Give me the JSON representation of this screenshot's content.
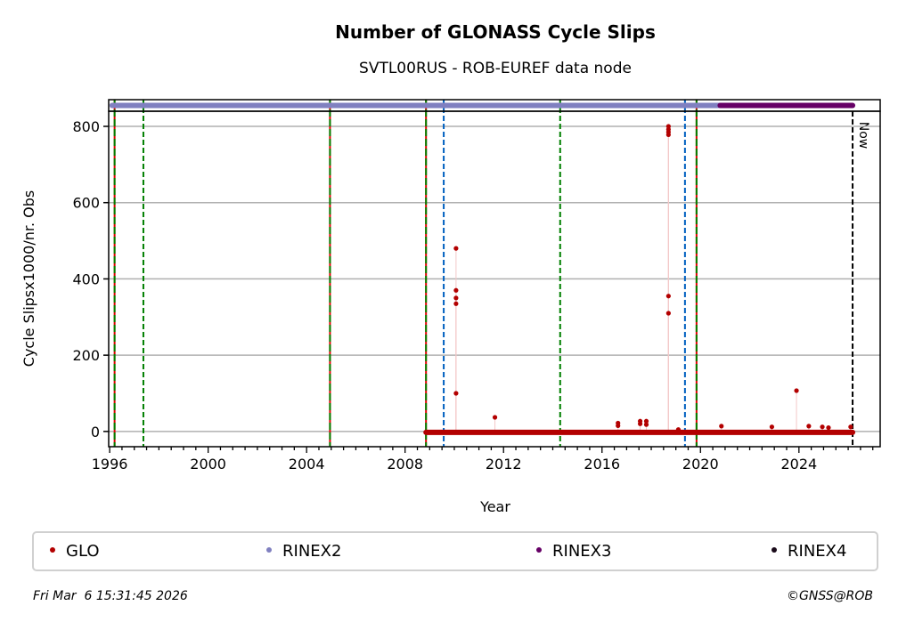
{
  "chart_data": {
    "type": "scatter",
    "title": "Number of GLONASS Cycle Slips",
    "subtitle": "SVTL00RUS - ROB-EUREF data node",
    "xlabel": "Year",
    "ylabel": "Cycle Slipsx1000/nr. Obs",
    "xlim": [
      1995.96,
      2027.3
    ],
    "ylim": [
      -40,
      870
    ],
    "xticks": [
      1996,
      2000,
      2004,
      2008,
      2012,
      2016,
      2020,
      2024
    ],
    "xtick_labels": [
      "1996",
      "2000",
      "2004",
      "2008",
      "2012",
      "2016",
      "2020",
      "2024"
    ],
    "yticks": [
      0,
      200,
      400,
      600,
      800
    ],
    "ytick_labels": [
      "0",
      "200",
      "400",
      "600",
      "800"
    ],
    "grid": "horizontal",
    "series": [
      {
        "name": "GLO",
        "color": "#b30000",
        "baseline": {
          "start": 2008.85,
          "end": 2026.18,
          "value": 0
        },
        "points": [
          [
            2010.07,
            480
          ],
          [
            2010.07,
            370
          ],
          [
            2010.07,
            350
          ],
          [
            2010.07,
            335
          ],
          [
            2010.07,
            100
          ],
          [
            2011.65,
            37
          ],
          [
            2016.65,
            22
          ],
          [
            2016.65,
            15
          ],
          [
            2017.55,
            27
          ],
          [
            2017.55,
            20
          ],
          [
            2017.8,
            27
          ],
          [
            2017.8,
            18
          ],
          [
            2018.7,
            800
          ],
          [
            2018.7,
            792
          ],
          [
            2018.7,
            785
          ],
          [
            2018.7,
            778
          ],
          [
            2018.7,
            355
          ],
          [
            2018.7,
            310
          ],
          [
            2019.1,
            5
          ],
          [
            2020.85,
            14
          ],
          [
            2022.9,
            12
          ],
          [
            2023.9,
            107
          ],
          [
            2024.4,
            14
          ],
          [
            2024.95,
            12
          ],
          [
            2025.2,
            10
          ],
          [
            2026.1,
            12
          ]
        ]
      }
    ],
    "rinex_bands": [
      {
        "name": "RINEX2",
        "color": "#8080c0",
        "start": 1996.1,
        "end": 2020.8
      },
      {
        "name": "RINEX3",
        "color": "#660066",
        "start": 2020.8,
        "end": 2026.18
      },
      {
        "name": "RINEX4",
        "color": "#1a0a1a",
        "start": null,
        "end": null
      }
    ],
    "event_lines": [
      {
        "x": 1996.2,
        "style": "red-green"
      },
      {
        "x": 2004.95,
        "style": "red-green"
      },
      {
        "x": 2008.85,
        "style": "red-green"
      },
      {
        "x": 2019.84,
        "style": "red-green"
      },
      {
        "x": 1997.37,
        "style": "green"
      },
      {
        "x": 2014.3,
        "style": "green"
      },
      {
        "x": 2009.57,
        "style": "blue"
      },
      {
        "x": 2019.37,
        "style": "blue"
      },
      {
        "x": 2026.18,
        "style": "now"
      }
    ],
    "now_label": "Now",
    "legend": {
      "placement": "bottom",
      "entries": [
        "GLO",
        "RINEX2",
        "RINEX3",
        "RINEX4"
      ]
    }
  },
  "footer": {
    "timestamp": "Fri Mar  6 15:31:45 2026",
    "copyright": "©GNSS@ROB"
  }
}
